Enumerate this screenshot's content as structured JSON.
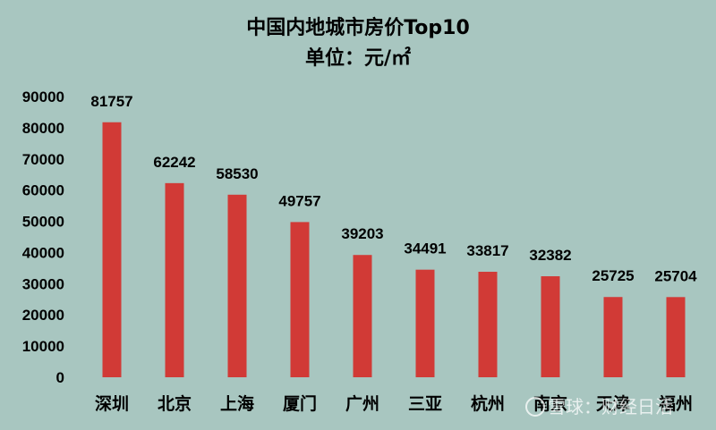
{
  "chart_data": {
    "type": "bar",
    "title": "中国内地城市房价Top10",
    "subtitle": "单位：元/㎡",
    "categories": [
      "深圳",
      "北京",
      "上海",
      "厦门",
      "广州",
      "三亚",
      "杭州",
      "南京",
      "天津",
      "福州"
    ],
    "values": [
      81757,
      62242,
      58530,
      49757,
      39203,
      34491,
      33817,
      32382,
      25725,
      25704
    ],
    "ylim": [
      0,
      90000
    ],
    "yticks": [
      0,
      10000,
      20000,
      30000,
      40000,
      50000,
      60000,
      70000,
      80000,
      90000
    ],
    "grid": false,
    "legend": "none",
    "bar_color": "#d13a36",
    "background_color": "#a8c6c0"
  },
  "watermark": "雪球：财经日活"
}
